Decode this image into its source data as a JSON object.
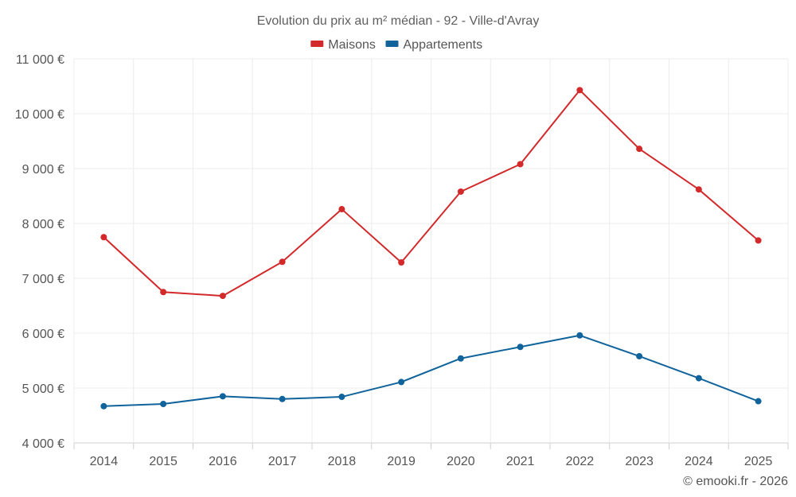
{
  "chart_data": {
    "type": "line",
    "title": "Evolution du prix au m² médian - 92 - Ville-d'Avray",
    "categories": [
      "2014",
      "2015",
      "2016",
      "2017",
      "2018",
      "2019",
      "2020",
      "2021",
      "2022",
      "2023",
      "2024",
      "2025"
    ],
    "series": [
      {
        "name": "Maisons",
        "color": "#d3292b",
        "values": [
          7750,
          6750,
          6680,
          7300,
          8260,
          7290,
          8580,
          9080,
          10430,
          9360,
          8620,
          7690
        ]
      },
      {
        "name": "Appartements",
        "color": "#10639b",
        "values": [
          4670,
          4710,
          4850,
          4800,
          4840,
          5110,
          5540,
          5750,
          5960,
          5580,
          5180,
          4760
        ]
      }
    ],
    "ylim": [
      4000,
      11000
    ],
    "yticks": [
      4000,
      5000,
      6000,
      7000,
      8000,
      9000,
      10000,
      11000
    ],
    "ytick_labels": [
      "4 000 €",
      "5 000 €",
      "6 000 €",
      "7 000 €",
      "8 000 €",
      "9 000 €",
      "10 000 €",
      "11 000 €"
    ],
    "xlabel": "",
    "ylabel": "",
    "grid": true,
    "legend": "top-center"
  },
  "credit": "© emooki.fr - 2026"
}
